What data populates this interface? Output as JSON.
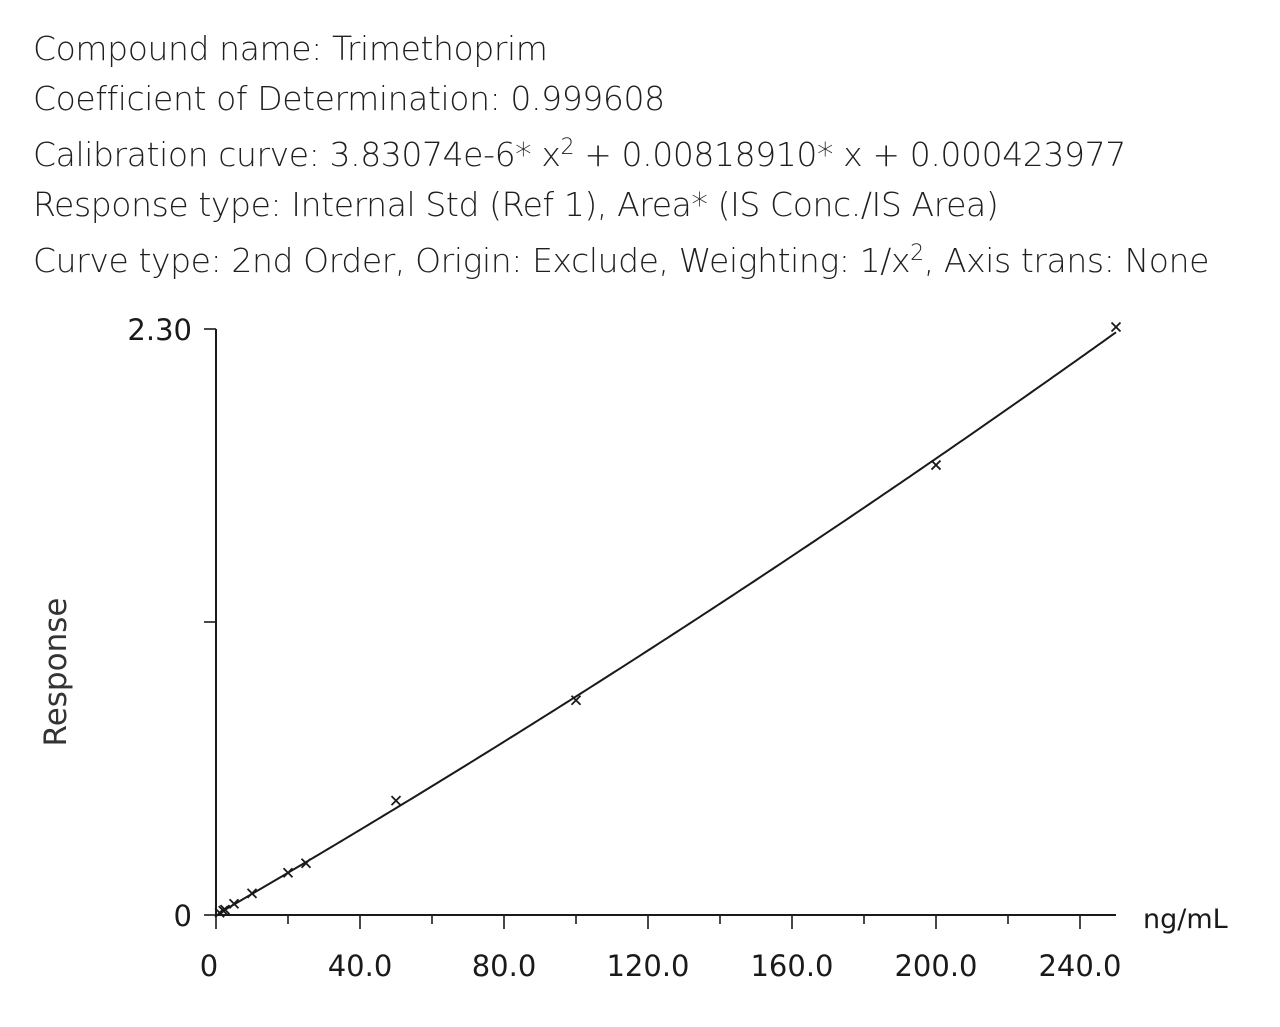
{
  "header": {
    "compound_name": "Compound name: Trimethoprim",
    "r2": "Coefficient of Determination: 0.999608",
    "curve_prefix": "Calibration curve: 3.83074e-6* x",
    "curve_sup": "2",
    "curve_suffix": " + 0.00818910* x + 0.000423977",
    "response_type": "Response type: Internal Std (Ref 1), Area* (IS Conc./IS Area)",
    "curve_type_prefix": "Curve type: 2nd Order, Origin: Exclude, Weighting: 1/x",
    "curve_type_sup": "2",
    "curve_type_suffix": ", Axis trans: None"
  },
  "chart_data": {
    "type": "scatter",
    "title": "",
    "xlabel": "ng/mL",
    "ylabel": "Response",
    "xlim": [
      0,
      250
    ],
    "ylim": [
      0,
      2.3
    ],
    "x_ticks": [
      0,
      40,
      80,
      120,
      160,
      200,
      240
    ],
    "x_tick_labels": [
      "0",
      "40.0",
      "80.0",
      "120.0",
      "160.0",
      "200.0",
      "240.0"
    ],
    "y_tick_labels": [
      {
        "value": 0,
        "label": "0"
      },
      {
        "value": 1.15,
        "label": ""
      },
      {
        "value": 2.3,
        "label": "2.30"
      }
    ],
    "fit_curve": {
      "a": 3.83074e-06,
      "b": 0.0081891,
      "c": 0.000423977
    },
    "series": [
      {
        "marker": "x",
        "x": [
          1,
          2,
          2.5,
          5,
          10,
          20,
          25,
          50,
          100,
          200,
          250
        ],
        "y": [
          0.009,
          0.017,
          0.021,
          0.044,
          0.085,
          0.166,
          0.203,
          0.449,
          0.843,
          1.766,
          2.308
        ]
      }
    ],
    "grid": false,
    "colors": {
      "marker": "#1a1a1a",
      "line": "#1a1a1a",
      "axis": "#1a1a1a"
    }
  }
}
